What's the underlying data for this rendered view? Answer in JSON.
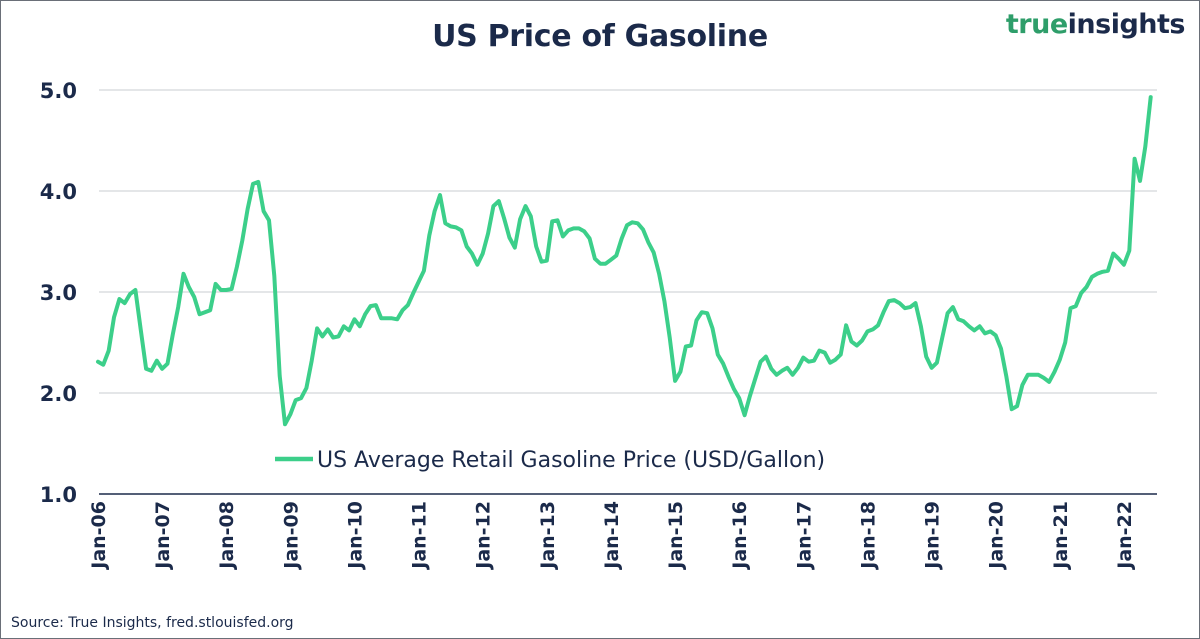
{
  "chart_data": {
    "type": "line",
    "title": "US Price of Gasoline",
    "xlabel": "",
    "ylabel": "",
    "ylim": [
      1.0,
      5.0
    ],
    "yticks": [
      1.0,
      2.0,
      3.0,
      4.0,
      5.0
    ],
    "ytick_labels": [
      "1.0",
      "2.0",
      "3.0",
      "4.0",
      "5.0"
    ],
    "xlim": [
      "2006-01",
      "2022-07"
    ],
    "xticks": [
      "2006-01",
      "2007-01",
      "2008-01",
      "2009-01",
      "2010-01",
      "2011-01",
      "2012-01",
      "2013-01",
      "2014-01",
      "2015-01",
      "2016-01",
      "2017-01",
      "2018-01",
      "2019-01",
      "2020-01",
      "2021-01",
      "2022-01"
    ],
    "xtick_labels": [
      "Jan-06",
      "Jan-07",
      "Jan-08",
      "Jan-09",
      "Jan-10",
      "Jan-11",
      "Jan-12",
      "Jan-13",
      "Jan-14",
      "Jan-15",
      "Jan-16",
      "Jan-17",
      "Jan-18",
      "Jan-19",
      "Jan-20",
      "Jan-21",
      "Jan-22"
    ],
    "grid": "horizontal",
    "legend_position": "bottom-center",
    "color": "#3ccf8a",
    "series": [
      {
        "name": "US Average Retail Gasoline Price (USD/Gallon)",
        "x": [
          "2006-01",
          "2006-02",
          "2006-03",
          "2006-04",
          "2006-05",
          "2006-06",
          "2006-07",
          "2006-08",
          "2006-09",
          "2006-10",
          "2006-11",
          "2006-12",
          "2007-01",
          "2007-02",
          "2007-03",
          "2007-04",
          "2007-05",
          "2007-06",
          "2007-07",
          "2007-08",
          "2007-09",
          "2007-10",
          "2007-11",
          "2007-12",
          "2008-01",
          "2008-02",
          "2008-03",
          "2008-04",
          "2008-05",
          "2008-06",
          "2008-07",
          "2008-08",
          "2008-09",
          "2008-10",
          "2008-11",
          "2008-12",
          "2009-01",
          "2009-02",
          "2009-03",
          "2009-04",
          "2009-05",
          "2009-06",
          "2009-07",
          "2009-08",
          "2009-09",
          "2009-10",
          "2009-11",
          "2009-12",
          "2010-01",
          "2010-02",
          "2010-03",
          "2010-04",
          "2010-05",
          "2010-06",
          "2010-07",
          "2010-08",
          "2010-09",
          "2010-10",
          "2010-11",
          "2010-12",
          "2011-01",
          "2011-02",
          "2011-03",
          "2011-04",
          "2011-05",
          "2011-06",
          "2011-07",
          "2011-08",
          "2011-09",
          "2011-10",
          "2011-11",
          "2011-12",
          "2012-01",
          "2012-02",
          "2012-03",
          "2012-04",
          "2012-05",
          "2012-06",
          "2012-07",
          "2012-08",
          "2012-09",
          "2012-10",
          "2012-11",
          "2012-12",
          "2013-01",
          "2013-02",
          "2013-03",
          "2013-04",
          "2013-05",
          "2013-06",
          "2013-07",
          "2013-08",
          "2013-09",
          "2013-10",
          "2013-11",
          "2013-12",
          "2014-01",
          "2014-02",
          "2014-03",
          "2014-04",
          "2014-05",
          "2014-06",
          "2014-07",
          "2014-08",
          "2014-09",
          "2014-10",
          "2014-11",
          "2014-12",
          "2015-01",
          "2015-02",
          "2015-03",
          "2015-04",
          "2015-05",
          "2015-06",
          "2015-07",
          "2015-08",
          "2015-09",
          "2015-10",
          "2015-11",
          "2015-12",
          "2016-01",
          "2016-02",
          "2016-03",
          "2016-04",
          "2016-05",
          "2016-06",
          "2016-07",
          "2016-08",
          "2016-09",
          "2016-10",
          "2016-11",
          "2016-12",
          "2017-01",
          "2017-02",
          "2017-03",
          "2017-04",
          "2017-05",
          "2017-06",
          "2017-07",
          "2017-08",
          "2017-09",
          "2017-10",
          "2017-11",
          "2017-12",
          "2018-01",
          "2018-02",
          "2018-03",
          "2018-04",
          "2018-05",
          "2018-06",
          "2018-07",
          "2018-08",
          "2018-09",
          "2018-10",
          "2018-11",
          "2018-12",
          "2019-01",
          "2019-02",
          "2019-03",
          "2019-04",
          "2019-05",
          "2019-06",
          "2019-07",
          "2019-08",
          "2019-09",
          "2019-10",
          "2019-11",
          "2019-12",
          "2020-01",
          "2020-02",
          "2020-03",
          "2020-04",
          "2020-05",
          "2020-06",
          "2020-07",
          "2020-08",
          "2020-09",
          "2020-10",
          "2020-11",
          "2020-12",
          "2021-01",
          "2021-02",
          "2021-03",
          "2021-04",
          "2021-05",
          "2021-06",
          "2021-07",
          "2021-08",
          "2021-09",
          "2021-10",
          "2021-11",
          "2021-12",
          "2022-01",
          "2022-02",
          "2022-03",
          "2022-04",
          "2022-05",
          "2022-06"
        ],
        "values": [
          2.31,
          2.28,
          2.42,
          2.75,
          2.93,
          2.89,
          2.98,
          3.02,
          2.63,
          2.24,
          2.22,
          2.32,
          2.24,
          2.29,
          2.58,
          2.85,
          3.18,
          3.05,
          2.95,
          2.78,
          2.8,
          2.82,
          3.08,
          3.02,
          3.02,
          3.03,
          3.25,
          3.51,
          3.82,
          4.07,
          4.09,
          3.8,
          3.71,
          3.16,
          2.17,
          1.69,
          1.79,
          1.93,
          1.95,
          2.05,
          2.32,
          2.64,
          2.56,
          2.63,
          2.55,
          2.56,
          2.66,
          2.62,
          2.73,
          2.66,
          2.78,
          2.86,
          2.87,
          2.74,
          2.74,
          2.74,
          2.73,
          2.82,
          2.87,
          2.99,
          3.1,
          3.21,
          3.56,
          3.8,
          3.96,
          3.68,
          3.65,
          3.64,
          3.61,
          3.45,
          3.38,
          3.27,
          3.38,
          3.58,
          3.85,
          3.9,
          3.73,
          3.54,
          3.44,
          3.72,
          3.85,
          3.75,
          3.45,
          3.3,
          3.31,
          3.7,
          3.71,
          3.55,
          3.61,
          3.63,
          3.63,
          3.6,
          3.53,
          3.33,
          3.28,
          3.28,
          3.32,
          3.36,
          3.53,
          3.66,
          3.69,
          3.68,
          3.62,
          3.49,
          3.39,
          3.18,
          2.91,
          2.55,
          2.12,
          2.21,
          2.46,
          2.47,
          2.72,
          2.8,
          2.79,
          2.64,
          2.38,
          2.29,
          2.16,
          2.04,
          1.95,
          1.78,
          1.97,
          2.14,
          2.31,
          2.36,
          2.24,
          2.18,
          2.22,
          2.25,
          2.18,
          2.25,
          2.35,
          2.31,
          2.32,
          2.42,
          2.4,
          2.3,
          2.33,
          2.38,
          2.67,
          2.51,
          2.47,
          2.52,
          2.61,
          2.63,
          2.67,
          2.8,
          2.91,
          2.92,
          2.89,
          2.84,
          2.85,
          2.89,
          2.66,
          2.36,
          2.25,
          2.3,
          2.55,
          2.79,
          2.85,
          2.73,
          2.71,
          2.66,
          2.62,
          2.66,
          2.59,
          2.61,
          2.57,
          2.44,
          2.16,
          1.84,
          1.87,
          2.08,
          2.18,
          2.18,
          2.18,
          2.15,
          2.11,
          2.21,
          2.33,
          2.5,
          2.84,
          2.86,
          2.99,
          3.05,
          3.15,
          3.18,
          3.2,
          3.21,
          3.38,
          3.33,
          3.27,
          3.41,
          4.32,
          4.1,
          4.44,
          4.93
        ]
      }
    ]
  },
  "logo": {
    "word1": "true",
    "word2": "insights"
  },
  "source": "Source: True Insights, fred.stlouisfed.org"
}
